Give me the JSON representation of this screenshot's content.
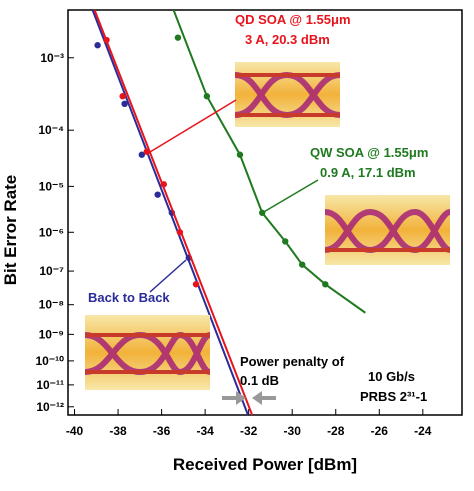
{
  "chart_data": {
    "type": "scatter",
    "yscale": "log-log",
    "xlabel": "Received Power [dBm]",
    "ylabel": "Bit Error Rate",
    "xlim": [
      -40.3,
      -22.2
    ],
    "xticks": [
      -40,
      -38,
      -36,
      -34,
      -32,
      -30,
      -28,
      -26,
      -24
    ],
    "ylim": [
      0.0033,
      4e-13
    ],
    "yticks": [
      {
        "value": 0.001,
        "label": "10⁻³"
      },
      {
        "value": 0.0001,
        "label": "10⁻⁴"
      },
      {
        "value": 1e-05,
        "label": "10⁻⁵"
      },
      {
        "value": 1e-06,
        "label": "10⁻⁶"
      },
      {
        "value": 1e-07,
        "label": "10⁻⁷"
      },
      {
        "value": 1e-08,
        "label": "10⁻⁸"
      },
      {
        "value": 1e-09,
        "label": "10⁻⁹"
      },
      {
        "value": 1e-10,
        "label": "10⁻¹⁰"
      },
      {
        "value": 1e-11,
        "label": "10⁻¹¹"
      },
      {
        "value": 1e-12,
        "label": "10⁻¹²"
      }
    ],
    "series": [
      {
        "name": "Back to Back",
        "color": "#2b2b9a",
        "x": [
          -38.94,
          -37.7,
          -36.91,
          -36.18,
          -35.53,
          -34.75
        ],
        "values": [
          0.0014,
          0.00025,
          3.9e-05,
          6.8e-06,
          2.8e-06,
          2.3e-07
        ],
        "fit_x": [
          -39.17,
          -32.03
        ],
        "fit_y": [
          0.0033,
          4e-13
        ]
      },
      {
        "name": "QD SOA @ 1.55μm",
        "color": "#e8141c",
        "x": [
          -38.53,
          -37.79,
          -36.68,
          -35.9,
          -35.16,
          -34.42
        ],
        "values": [
          0.0016,
          0.00032,
          4.4e-05,
          1.1e-05,
          1e-06,
          4.2e-08
        ],
        "fit_x": [
          -39.08,
          -31.84
        ],
        "fit_y": [
          0.0033,
          4e-13
        ]
      },
      {
        "name": "QW SOA @ 1.55μm",
        "color": "#1f7a1f",
        "x": [
          -35.25,
          -33.92,
          -32.4,
          -31.38,
          -30.32,
          -29.54,
          -28.48
        ],
        "values": [
          0.0017,
          0.00032,
          3.9e-05,
          2.8e-06,
          6e-07,
          1.5e-07,
          4.2e-08
        ],
        "fit_x": [
          -35.45,
          -33.92,
          -32.4,
          -31.38,
          -30.32,
          -29.54,
          -28.48,
          -26.64
        ],
        "fit_y": [
          0.0033,
          0.00032,
          3.9e-05,
          2.8e-06,
          6e-07,
          1.5e-07,
          4.2e-08,
          5.5e-09
        ]
      }
    ],
    "annotations": [
      "3 A, 20.3 dBm",
      "0.9 A, 17.1 dBm",
      "Power penalty of",
      "0.1 dB",
      "10 Gb/s",
      "PRBS 2³¹-1"
    ]
  }
}
